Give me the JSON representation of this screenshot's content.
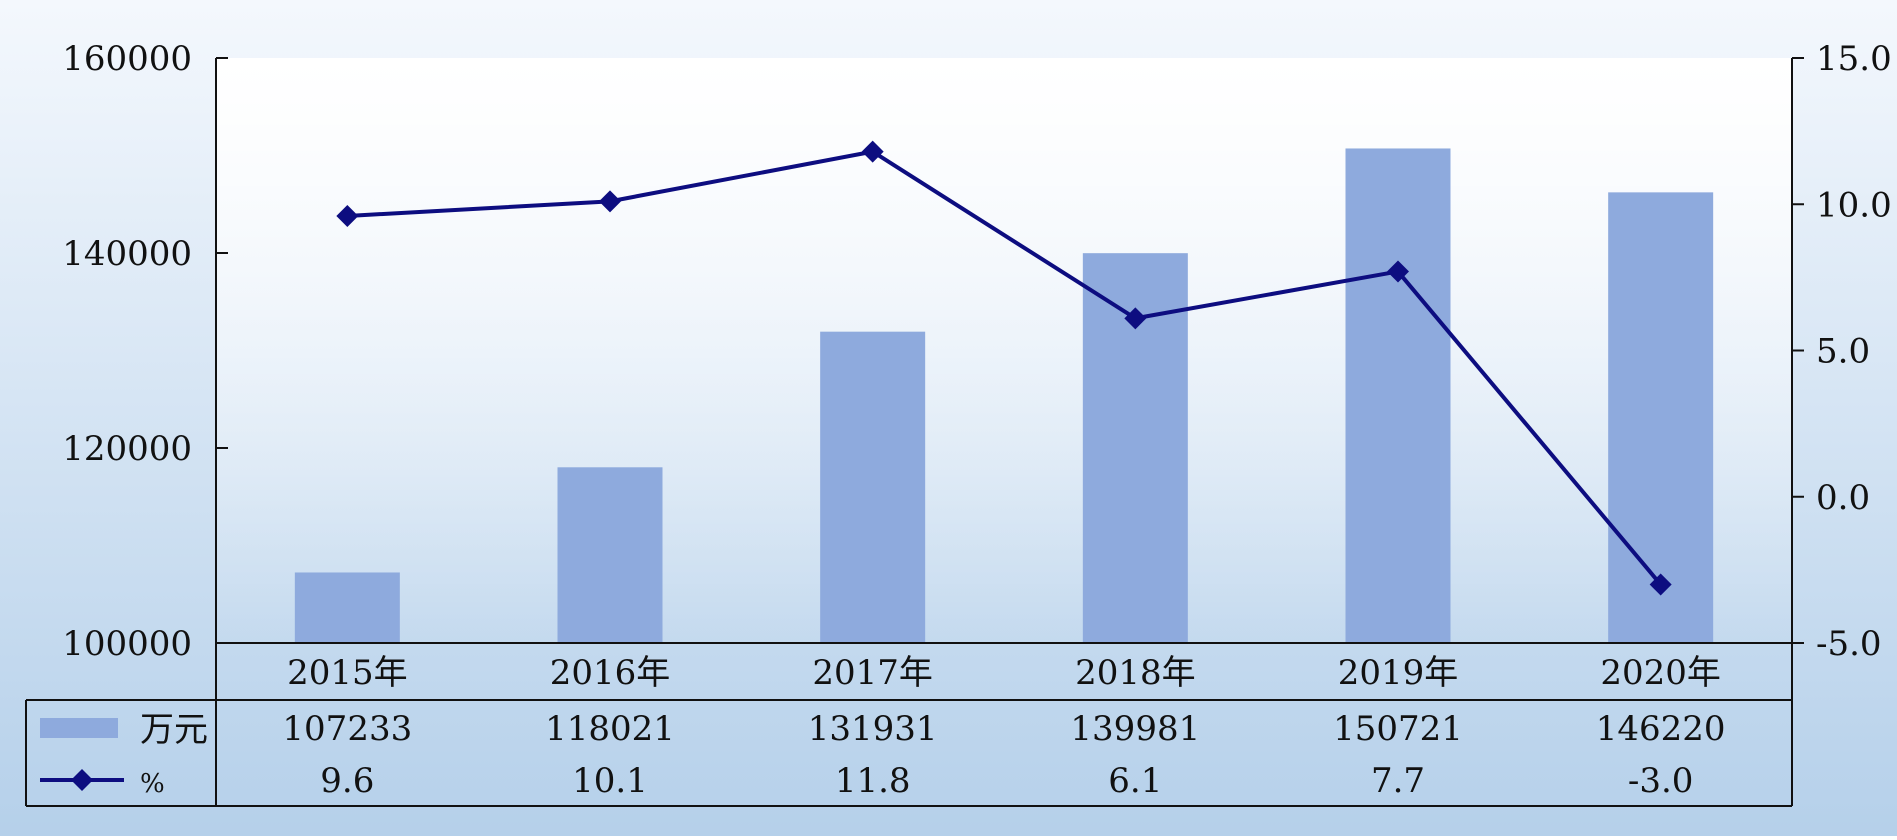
{
  "chart_data": {
    "type": "bar",
    "categories": [
      "2015年",
      "2016年",
      "2017年",
      "2018年",
      "2019年",
      "2020年"
    ],
    "series": [
      {
        "name": "万元",
        "kind": "bar",
        "axis": "left",
        "values": [
          107233,
          118021,
          131931,
          139981,
          150721,
          146220
        ],
        "labels": [
          "107233",
          "118021",
          "131931",
          "139981",
          "150721",
          "146220"
        ],
        "color": "#8eaadd"
      },
      {
        "name": "%",
        "kind": "line",
        "axis": "right",
        "marker": "diamond",
        "values": [
          9.6,
          10.1,
          11.8,
          6.1,
          7.7,
          -3.0
        ],
        "labels": [
          "9.6",
          "10.1",
          "11.8",
          "6.1",
          "7.7",
          "-3.0"
        ],
        "color": "#0d0d80"
      }
    ],
    "y_left": {
      "ylim": [
        100000,
        160000
      ],
      "ticks": [
        100000,
        120000,
        140000,
        160000
      ],
      "tick_labels": [
        "100000",
        "120000",
        "140000",
        "160000"
      ]
    },
    "y_right": {
      "ylim": [
        -5.0,
        15.0
      ],
      "ticks": [
        -5.0,
        0.0,
        5.0,
        10.0,
        15.0
      ],
      "tick_labels": [
        "-5.0",
        "0.0",
        "5.0",
        "10.0",
        "15.0"
      ]
    },
    "data_table": true,
    "grid": false,
    "legend": "data-table-left",
    "background": {
      "top": "#f4f8fd",
      "bottom": "#b5d0ea"
    }
  }
}
